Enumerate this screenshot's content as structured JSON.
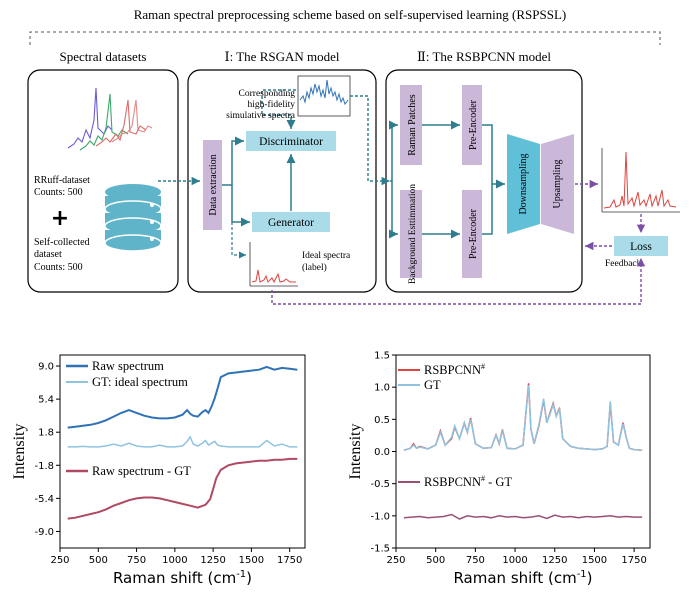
{
  "header": {
    "title": "Raman spectral preprocessing scheme based on self-supervised learning (RSPSSL)"
  },
  "datasets_panel": {
    "title": "Spectral datasets",
    "rruff_name": "RRuff-dataset",
    "rruff_counts": "Counts: 500",
    "plus": "+",
    "self_name_line1": "Self-collected",
    "self_name_line2": "dataset",
    "self_counts": "Counts: 500",
    "database_icon": "database-icon"
  },
  "rsgan_panel": {
    "title": "Ⅰ: The RSGAN model",
    "data_extraction": "Data extraction",
    "discriminator": "Discriminator",
    "generator": "Generator",
    "sim_line1": "Corresponding",
    "sim_line2": "high-fidelity",
    "sim_line3": "simulative spectra",
    "ideal_line1": "Ideal spectra",
    "ideal_line2": "(label)"
  },
  "rsbpcnn_panel": {
    "title": "Ⅱ: The RSBPCNN model",
    "raman_patches": "Raman Patches",
    "background_estimation": "Background Esttimmation",
    "pre_encoder": "Pre-Encoder",
    "downsampling": "Downsampling",
    "upsampling": "Upsampling"
  },
  "outputs": {
    "loss": "Loss",
    "feedback": "Feedback"
  },
  "colors": {
    "teal": "#2e7d8e",
    "cyan_box": "#a9dbe8",
    "purple_box": "#cbb8d9",
    "purple_dash": "#7b4fa8",
    "raw_blue": "#2f73b6",
    "gt_light": "#8fc3e0",
    "diff_red": "#b04a63",
    "pred_red": "#e0443f",
    "pred_purple": "#9a4f77"
  },
  "chart_data": [
    {
      "type": "line",
      "xlabel": "Raman shift (cm",
      "xlabel_sup": "-1",
      "xlabel_close": ")",
      "ylabel": "Intensity",
      "xlim": [
        250,
        1850
      ],
      "ylim": [
        -10.8,
        10.2
      ],
      "xticks": [
        "250",
        "500",
        "750",
        "1000",
        "1250",
        "1500",
        "1750"
      ],
      "yticks": [
        "9.0",
        "5.4",
        "1.8",
        "-1.8",
        "-5.4",
        "-9.0"
      ],
      "legend_top": [
        "Raw spectrum",
        "GT: ideal spectrum"
      ],
      "legend_bottom": "Raw spectrum - GT",
      "series": [
        {
          "name": "Raw spectrum",
          "x": [
            300,
            350,
            400,
            450,
            500,
            550,
            600,
            650,
            700,
            750,
            800,
            850,
            900,
            950,
            1000,
            1050,
            1080,
            1100,
            1120,
            1150,
            1180,
            1200,
            1220,
            1240,
            1260,
            1280,
            1300,
            1350,
            1400,
            1450,
            1500,
            1550,
            1600,
            1650,
            1700,
            1750,
            1800
          ],
          "y": [
            2.3,
            2.4,
            2.5,
            2.6,
            2.8,
            3.1,
            3.5,
            3.9,
            4.2,
            3.9,
            3.6,
            3.4,
            3.3,
            3.3,
            3.4,
            3.7,
            4.2,
            3.8,
            3.6,
            3.5,
            4.0,
            4.2,
            3.9,
            4.6,
            5.5,
            6.6,
            7.8,
            8.2,
            8.3,
            8.4,
            8.5,
            8.6,
            8.9,
            8.6,
            8.8,
            8.7,
            8.6
          ]
        },
        {
          "name": "GT: ideal spectrum",
          "x": [
            300,
            350,
            400,
            450,
            500,
            550,
            600,
            650,
            700,
            750,
            800,
            850,
            900,
            950,
            1000,
            1050,
            1080,
            1100,
            1120,
            1150,
            1180,
            1200,
            1220,
            1240,
            1260,
            1280,
            1300,
            1350,
            1400,
            1450,
            1500,
            1550,
            1600,
            1650,
            1700,
            1750,
            1800
          ],
          "y": [
            0.2,
            0.2,
            0.25,
            0.2,
            0.2,
            0.3,
            0.5,
            0.3,
            0.6,
            0.3,
            0.2,
            0.2,
            0.4,
            0.2,
            0.2,
            0.3,
            0.8,
            1.3,
            0.5,
            0.3,
            0.6,
            0.9,
            0.4,
            0.6,
            0.8,
            0.4,
            0.3,
            0.2,
            0.2,
            0.2,
            0.2,
            0.2,
            0.9,
            0.3,
            0.5,
            0.2,
            0.2
          ]
        },
        {
          "name": "Raw spectrum - GT",
          "x": [
            300,
            350,
            400,
            450,
            500,
            550,
            600,
            650,
            700,
            750,
            800,
            850,
            900,
            950,
            1000,
            1050,
            1100,
            1150,
            1200,
            1230,
            1250,
            1270,
            1300,
            1350,
            1400,
            1450,
            1500,
            1550,
            1600,
            1650,
            1700,
            1750,
            1800
          ],
          "y": [
            -7.6,
            -7.5,
            -7.3,
            -7.1,
            -6.9,
            -6.6,
            -6.2,
            -5.9,
            -5.6,
            -5.4,
            -5.3,
            -5.3,
            -5.4,
            -5.6,
            -5.8,
            -6.0,
            -6.2,
            -6.4,
            -6.1,
            -5.5,
            -4.4,
            -3.2,
            -2.3,
            -1.8,
            -1.6,
            -1.5,
            -1.4,
            -1.3,
            -1.3,
            -1.2,
            -1.2,
            -1.1,
            -1.1
          ]
        }
      ]
    },
    {
      "type": "line",
      "xlabel": "Raman shift (cm",
      "xlabel_sup": "-1",
      "xlabel_close": ")",
      "ylabel": "Intensity",
      "xlim": [
        250,
        1850
      ],
      "ylim": [
        -1.5,
        1.5
      ],
      "xticks": [
        "250",
        "500",
        "750",
        "1000",
        "1250",
        "1500",
        "1750"
      ],
      "yticks": [
        "1.5",
        "1.0",
        "0.5",
        "0.0",
        "-0.5",
        "-1.0",
        "-1.5"
      ],
      "legend_top": [
        "RSBPCNN",
        "GT"
      ],
      "legend_top_sup": "#",
      "legend_bottom": "RSBPCNN",
      "legend_bottom_sup": "#",
      "legend_bottom_tail": " - GT",
      "series": [
        {
          "name": "RSBPCNN",
          "x": [
            300,
            340,
            360,
            380,
            400,
            450,
            500,
            530,
            560,
            600,
            620,
            650,
            680,
            700,
            720,
            750,
            800,
            850,
            880,
            900,
            920,
            950,
            1000,
            1050,
            1085,
            1100,
            1120,
            1150,
            1180,
            1200,
            1220,
            1240,
            1260,
            1280,
            1300,
            1350,
            1400,
            1450,
            1500,
            1550,
            1580,
            1600,
            1620,
            1650,
            1680,
            1700,
            1720,
            1750,
            1800
          ],
          "y": [
            0.02,
            0.05,
            0.12,
            0.05,
            0.08,
            0.04,
            0.1,
            0.32,
            0.1,
            0.2,
            0.38,
            0.2,
            0.44,
            0.3,
            0.52,
            0.12,
            0.05,
            0.06,
            0.26,
            0.12,
            0.34,
            0.05,
            0.04,
            0.1,
            1.06,
            0.35,
            0.12,
            0.4,
            0.8,
            0.45,
            0.6,
            0.75,
            0.55,
            0.68,
            0.2,
            0.08,
            0.05,
            0.04,
            0.03,
            0.04,
            0.08,
            0.75,
            0.15,
            0.1,
            0.45,
            0.22,
            0.05,
            0.03,
            0.02
          ]
        },
        {
          "name": "GT",
          "x": [
            300,
            340,
            360,
            380,
            400,
            450,
            500,
            530,
            560,
            600,
            620,
            650,
            680,
            700,
            720,
            750,
            800,
            850,
            880,
            900,
            920,
            950,
            1000,
            1050,
            1085,
            1100,
            1120,
            1150,
            1180,
            1200,
            1220,
            1240,
            1260,
            1280,
            1300,
            1350,
            1400,
            1450,
            1500,
            1550,
            1580,
            1600,
            1620,
            1650,
            1680,
            1700,
            1720,
            1750,
            1800
          ],
          "y": [
            0.02,
            0.05,
            0.1,
            0.05,
            0.07,
            0.04,
            0.1,
            0.3,
            0.1,
            0.22,
            0.4,
            0.2,
            0.45,
            0.3,
            0.5,
            0.12,
            0.05,
            0.06,
            0.25,
            0.12,
            0.33,
            0.05,
            0.04,
            0.1,
            1.03,
            0.35,
            0.12,
            0.42,
            0.82,
            0.45,
            0.58,
            0.73,
            0.55,
            0.66,
            0.2,
            0.08,
            0.05,
            0.04,
            0.03,
            0.04,
            0.08,
            0.78,
            0.15,
            0.1,
            0.43,
            0.22,
            0.05,
            0.03,
            0.02
          ]
        },
        {
          "name": "RSBPCNN - GT",
          "x": [
            300,
            350,
            400,
            450,
            500,
            550,
            600,
            650,
            700,
            750,
            800,
            850,
            900,
            950,
            1000,
            1050,
            1100,
            1150,
            1200,
            1250,
            1300,
            1350,
            1400,
            1450,
            1500,
            1550,
            1600,
            1650,
            1700,
            1750,
            1800
          ],
          "y": [
            -1.03,
            -1.02,
            -1.01,
            -1.03,
            -1.02,
            -1.01,
            -0.98,
            -1.05,
            -1.0,
            -1.02,
            -1.01,
            -1.03,
            -1.0,
            -1.02,
            -1.01,
            -1.03,
            -1.02,
            -1.0,
            -1.04,
            -0.99,
            -1.02,
            -1.01,
            -1.03,
            -1.01,
            -1.02,
            -1.01,
            -1.0,
            -1.02,
            -1.01,
            -1.02,
            -1.02
          ]
        }
      ]
    }
  ]
}
